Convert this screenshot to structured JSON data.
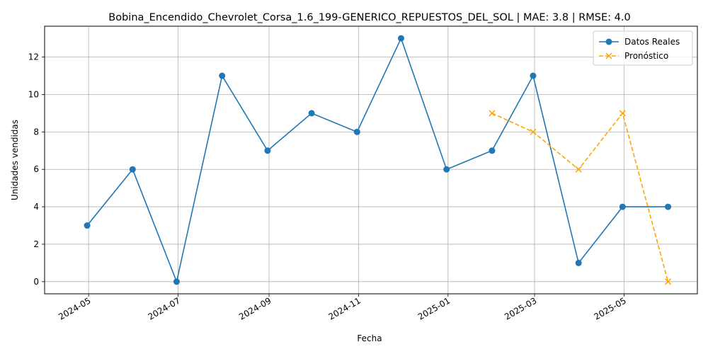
{
  "chart_data": {
    "type": "line",
    "title": "Bobina_Encendido_Chevrolet_Corsa_1.6_199-GENERICO_REPUESTOS_DEL_SOL | MAE: 3.8 | RMSE: 4.0",
    "xlabel": "Fecha",
    "ylabel": "Unidades vendidas",
    "x_ticks": [
      "2024-05",
      "2024-07",
      "2024-09",
      "2024-11",
      "2025-01",
      "2025-03",
      "2025-05"
    ],
    "y_ticks": [
      "0",
      "2",
      "4",
      "6",
      "8",
      "10",
      "12"
    ],
    "ylim": [
      -0.65,
      13.65
    ],
    "xlim": [
      "2024-04-01",
      "2025-06-20"
    ],
    "grid": true,
    "legend_position": "top-right",
    "series": [
      {
        "name": "Datos Reales",
        "color": "#1f77b4",
        "style": "solid",
        "marker": "circle",
        "x": [
          "2024-04-30",
          "2024-05-31",
          "2024-06-30",
          "2024-07-31",
          "2024-08-31",
          "2024-09-30",
          "2024-10-31",
          "2024-11-30",
          "2024-12-31",
          "2025-01-31",
          "2025-02-28",
          "2025-03-31",
          "2025-04-30",
          "2025-05-31"
        ],
        "values": [
          3,
          6,
          0,
          11,
          7,
          9,
          8,
          13,
          6,
          7,
          11,
          1,
          4,
          4
        ]
      },
      {
        "name": "Pronóstico",
        "color": "#ffa500",
        "style": "dashed",
        "marker": "x",
        "x": [
          "2025-01-31",
          "2025-02-28",
          "2025-03-31",
          "2025-04-30",
          "2025-05-31"
        ],
        "values": [
          9,
          8,
          6,
          9,
          0
        ]
      }
    ]
  }
}
